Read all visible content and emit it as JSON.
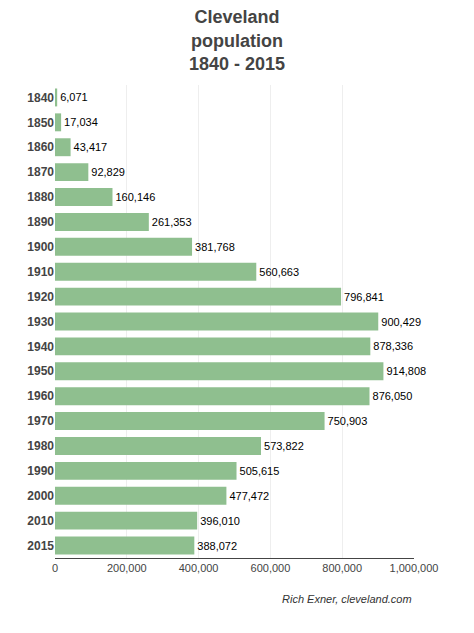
{
  "chart_data": {
    "type": "bar",
    "orientation": "horizontal",
    "title": "Cleveland\npopulation\n1840 - 2015",
    "categories": [
      "1840",
      "1850",
      "1860",
      "1870",
      "1880",
      "1890",
      "1900",
      "1910",
      "1920",
      "1930",
      "1940",
      "1950",
      "1960",
      "1970",
      "1980",
      "1990",
      "2000",
      "2010",
      "2015"
    ],
    "values": [
      6071,
      17034,
      43417,
      92829,
      160146,
      261353,
      381768,
      560663,
      796841,
      900429,
      878336,
      914808,
      876050,
      750903,
      573822,
      505615,
      477472,
      396010,
      388072
    ],
    "value_labels": [
      "6,071",
      "17,034",
      "43,417",
      "92,829",
      "160,146",
      "261,353",
      "381,768",
      "560,663",
      "796,841",
      "900,429",
      "878,336",
      "914,808",
      "876,050",
      "750,903",
      "573,822",
      "505,615",
      "477,472",
      "396,010",
      "388,072"
    ],
    "data_labels": true,
    "color": "#8FBF8F",
    "xlim": [
      0,
      1000000
    ],
    "xticks": [
      0,
      {
        "value": 200000,
        "label": "200,000"
      },
      {
        "value": 400000,
        "label": "400,000"
      },
      {
        "value": 600000,
        "label": "600,000"
      },
      {
        "value": 800000,
        "label": "800,000"
      },
      {
        "value": 1000000,
        "label": "1,000,000"
      }
    ],
    "grid": true,
    "annotations": [
      "Rich Exner, cleveland.com"
    ]
  }
}
